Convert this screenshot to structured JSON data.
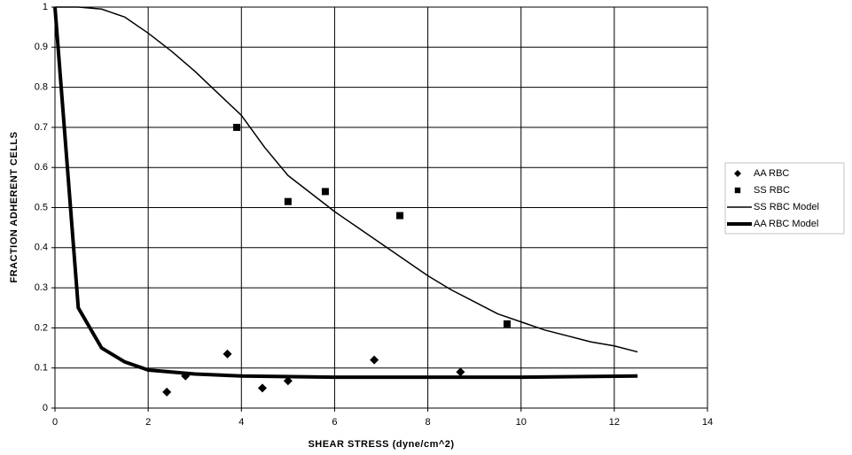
{
  "chart_data": {
    "type": "scatter",
    "xlabel": "SHEAR STRESS (dyne/cm^2)",
    "ylabel": "FRACTION ADHERENT CELLS",
    "xlim": [
      0,
      14
    ],
    "xticks": [
      0,
      2,
      4,
      6,
      8,
      10,
      12,
      14
    ],
    "ylim": [
      0,
      1
    ],
    "yticks": [
      0,
      0.1,
      0.2,
      0.3,
      0.4,
      0.5,
      0.6,
      0.7,
      0.8,
      0.9,
      1
    ],
    "grid": true,
    "legend": "right",
    "series": [
      {
        "name": "AA RBC",
        "color": "#000000",
        "marker": "diamond",
        "x": [
          2.4,
          2.8,
          3.7,
          4.45,
          5.0,
          6.85,
          8.7
        ],
        "values": [
          0.04,
          0.08,
          0.135,
          0.05,
          0.068,
          0.12,
          0.09
        ]
      },
      {
        "name": "SS RBC",
        "color": "#000000",
        "marker": "square",
        "x": [
          3.9,
          5.0,
          5.8,
          7.4,
          9.7
        ],
        "values": [
          0.7,
          0.515,
          0.54,
          0.48,
          0.21
        ]
      },
      {
        "name": "SS RBC Model",
        "color": "#000000",
        "line_width": 1.5,
        "x": [
          0,
          0.5,
          1,
          1.5,
          2,
          2.5,
          3,
          3.5,
          4,
          4.5,
          5,
          5.5,
          6,
          6.5,
          7,
          7.5,
          8,
          8.5,
          9,
          9.5,
          10,
          10.5,
          11,
          11.5,
          12,
          12.5
        ],
        "values": [
          1,
          1,
          0.995,
          0.975,
          0.935,
          0.89,
          0.84,
          0.785,
          0.73,
          0.65,
          0.58,
          0.535,
          0.49,
          0.45,
          0.41,
          0.37,
          0.33,
          0.295,
          0.265,
          0.235,
          0.215,
          0.195,
          0.18,
          0.165,
          0.155,
          0.14
        ]
      },
      {
        "name": "AA RBC Model",
        "color": "#000000",
        "line_width": 4,
        "x": [
          0,
          0.5,
          1,
          1.5,
          2,
          3,
          4,
          6,
          8,
          10,
          12.5
        ],
        "values": [
          1,
          0.25,
          0.15,
          0.115,
          0.095,
          0.085,
          0.08,
          0.077,
          0.077,
          0.077,
          0.08
        ]
      }
    ]
  }
}
